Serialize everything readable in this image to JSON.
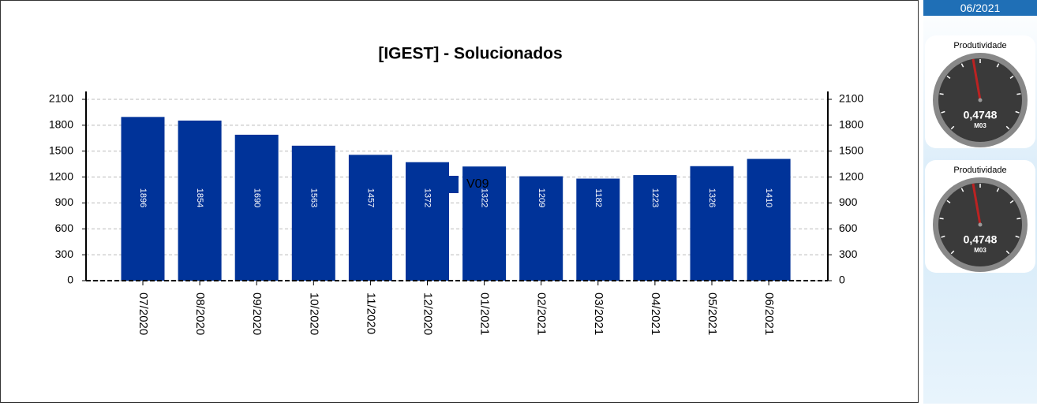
{
  "chart_data": {
    "type": "bar",
    "title": "[IGEST]  - Solucionados",
    "categories": [
      "07/2020",
      "08/2020",
      "09/2020",
      "10/2020",
      "11/2020",
      "12/2020",
      "01/2021",
      "02/2021",
      "03/2021",
      "04/2021",
      "05/2021",
      "06/2021"
    ],
    "series": [
      {
        "name": "V09",
        "color": "#003399",
        "values": [
          1896,
          1854,
          1690,
          1563,
          1457,
          1372,
          1322,
          1209,
          1182,
          1223,
          1326,
          1410
        ]
      }
    ],
    "ylim": [
      0,
      2100
    ],
    "yticks": [
      0,
      300,
      600,
      900,
      1200,
      1500,
      1800,
      2100
    ],
    "y2lim": [
      0,
      2100
    ],
    "y2ticks": [
      0,
      300,
      600,
      900,
      1200,
      1500,
      1800,
      2100
    ],
    "grid": true,
    "legend": "bottom"
  },
  "sidebar": {
    "period": "06/2021",
    "gauges": [
      {
        "title": "Produtividade",
        "value_text": "0,4748",
        "unit": "M03"
      },
      {
        "title": "Produtividade",
        "value_text": "0,4748",
        "unit": "M03"
      }
    ]
  }
}
